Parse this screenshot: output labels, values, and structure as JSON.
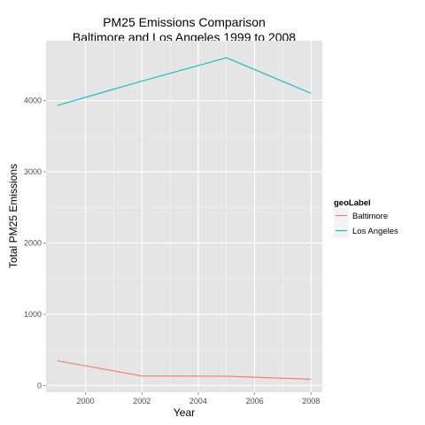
{
  "chart_data": {
    "type": "line",
    "title": "PM25 Emissions Comparison",
    "subtitle": "Baltimore and Los Angeles 1999 to 2008",
    "xlabel": "Year",
    "ylabel": "Total PM25 Emissions",
    "x": [
      1999,
      2002,
      2005,
      2008
    ],
    "xlim": [
      1998.6,
      2008.4
    ],
    "ylim": [
      -95,
      4840
    ],
    "xticks": [
      2000,
      2002,
      2004,
      2006,
      2008
    ],
    "yticks": [
      0,
      1000,
      2000,
      3000,
      4000
    ],
    "grid": true,
    "legend": {
      "title": "geoLabel",
      "position": "right"
    },
    "series": [
      {
        "name": "Baltimore",
        "color": "#F8766D",
        "values": [
          346.8,
          134.3,
          130.4,
          88.3
        ]
      },
      {
        "name": "Los Angeles",
        "color": "#00BFC4",
        "values": [
          3931.1,
          4273.7,
          4601.4,
          4101.3
        ]
      }
    ]
  }
}
